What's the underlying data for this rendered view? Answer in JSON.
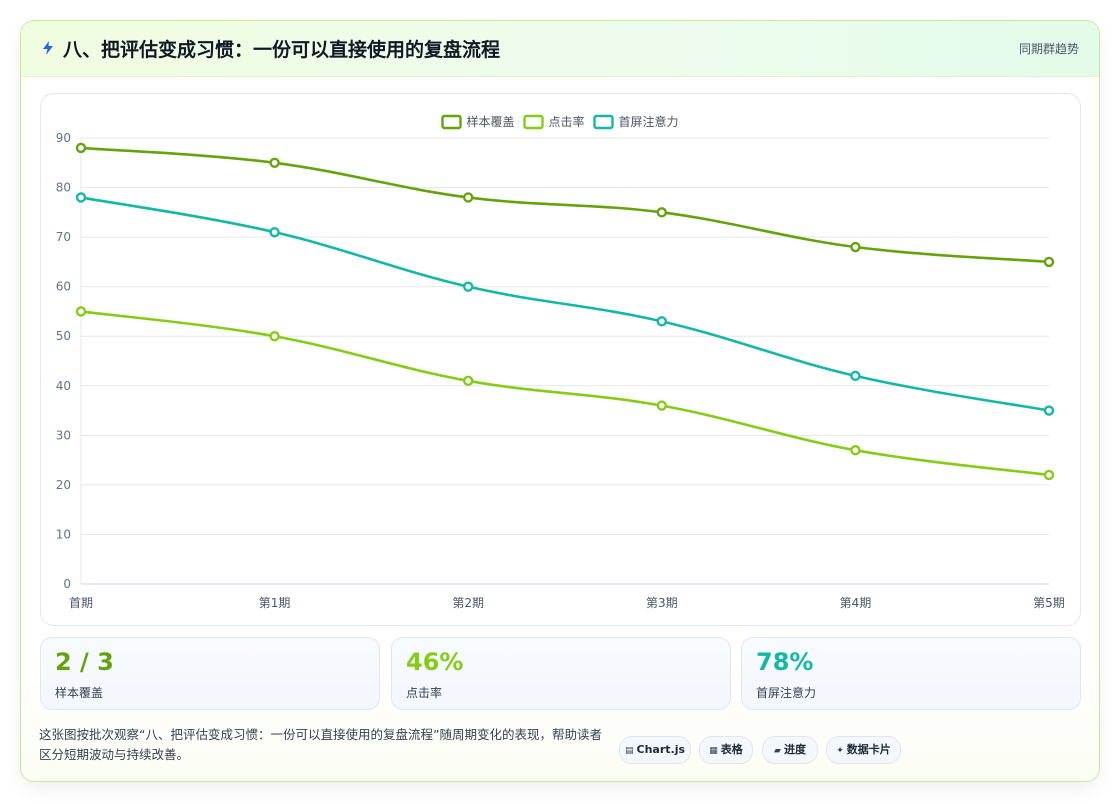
{
  "header": {
    "icon": "lightning-icon",
    "title": "八、把评估变成习惯：一份可以直接使用的复盘流程",
    "right_label": "同期群趋势"
  },
  "chart_data": {
    "type": "line",
    "categories": [
      "首期",
      "第1期",
      "第2期",
      "第3期",
      "第4期",
      "第5期"
    ],
    "series": [
      {
        "name": "样本覆盖",
        "color": "#65a30d",
        "values": [
          88,
          85,
          78,
          75,
          68,
          65
        ]
      },
      {
        "name": "点击率",
        "color": "#84cc16",
        "values": [
          55,
          50,
          41,
          36,
          27,
          22
        ]
      },
      {
        "name": "首屏注意力",
        "color": "#14b8a6",
        "values": [
          78,
          71,
          60,
          53,
          42,
          35
        ]
      }
    ],
    "ylim": [
      0,
      90
    ],
    "yticks": [
      0,
      10,
      20,
      30,
      40,
      50,
      60,
      70,
      80,
      90
    ],
    "grid": true,
    "legend_position": "top-center"
  },
  "stats": [
    {
      "value": "2 / 3",
      "label": "样本覆盖",
      "color": "#65a30d"
    },
    {
      "value": "46%",
      "label": "点击率",
      "color": "#84cc16"
    },
    {
      "value": "78%",
      "label": "首屏注意力",
      "color": "#14b8a6"
    }
  ],
  "footer": {
    "description": "这张图按批次观察“八、把评估变成习惯：一份可以直接使用的复盘流程”随周期变化的表现，帮助读者区分短期波动与持续改善。",
    "pills": [
      {
        "icon": "database-icon",
        "glyph": "▤",
        "label": "Chart.js"
      },
      {
        "icon": "table-icon",
        "glyph": "▦",
        "label": "表格"
      },
      {
        "icon": "progress-icon",
        "glyph": "▰",
        "label": "进度"
      },
      {
        "icon": "sparkle-icon",
        "glyph": "✦",
        "label": "数据卡片"
      }
    ]
  }
}
